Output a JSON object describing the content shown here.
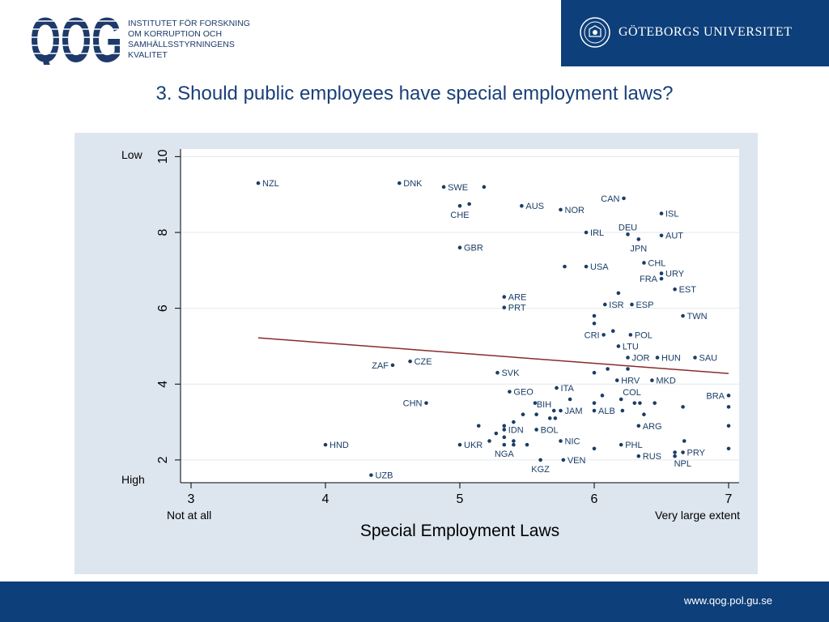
{
  "header": {
    "qog_logo_text": "QOG",
    "qog_lines": [
      "INSTITUTET FÖR FORSKNING",
      "OM KORRUPTION OCH",
      "SAMHÄLLSSTYRNINGENS",
      "KVALITET"
    ],
    "university_name": "GÖTEBORGS UNIVERSITET"
  },
  "title": "3. Should public employees have special employment laws?",
  "footer": {
    "url": "www.qog.pol.gu.se"
  },
  "colors": {
    "brand_blue": "#0d3f7a",
    "point": "#1a3d66",
    "fit_line": "#8b2a2a",
    "plot_bg": "#dde6ef"
  },
  "chart_data": {
    "type": "scatter",
    "xlabel": "Special Employment Laws",
    "ylabel": "",
    "xlim": [
      3,
      7
    ],
    "ylim": [
      1.4,
      10.2
    ],
    "xticks": [
      3,
      4,
      5,
      6,
      7
    ],
    "yticks": [
      2,
      4,
      6,
      8,
      10
    ],
    "x_end_labels": {
      "min": "Not at all",
      "max": "Very large extent"
    },
    "y_end_labels": {
      "max": "Low",
      "min": "High"
    },
    "grid": "horizontal",
    "fit_line": {
      "x": [
        3.5,
        7.0
      ],
      "y": [
        5.22,
        4.28
      ]
    },
    "points": [
      {
        "x": 3.5,
        "y": 9.3,
        "label": "NZL",
        "pos": "right"
      },
      {
        "x": 4.55,
        "y": 9.3,
        "label": "DNK",
        "pos": "right"
      },
      {
        "x": 4.88,
        "y": 9.2,
        "label": "SWE",
        "pos": "right"
      },
      {
        "x": 5.18,
        "y": 9.2,
        "label": "",
        "pos": "right"
      },
      {
        "x": 5.07,
        "y": 8.75,
        "label": "",
        "pos": "right"
      },
      {
        "x": 5.0,
        "y": 8.7,
        "label": "CHE",
        "pos": "below"
      },
      {
        "x": 5.46,
        "y": 8.7,
        "label": "AUS",
        "pos": "right"
      },
      {
        "x": 5.75,
        "y": 8.6,
        "label": "NOR",
        "pos": "right"
      },
      {
        "x": 6.22,
        "y": 8.9,
        "label": "CAN",
        "pos": "left"
      },
      {
        "x": 6.5,
        "y": 8.5,
        "label": "ISL",
        "pos": "right"
      },
      {
        "x": 5.94,
        "y": 8.0,
        "label": "IRL",
        "pos": "right"
      },
      {
        "x": 6.25,
        "y": 7.95,
        "label": "DEU",
        "pos": "above"
      },
      {
        "x": 6.33,
        "y": 7.82,
        "label": "JPN",
        "pos": "below"
      },
      {
        "x": 6.5,
        "y": 7.92,
        "label": "AUT",
        "pos": "right"
      },
      {
        "x": 5.0,
        "y": 7.6,
        "label": "GBR",
        "pos": "right"
      },
      {
        "x": 5.78,
        "y": 7.1,
        "label": "",
        "pos": "right"
      },
      {
        "x": 5.94,
        "y": 7.1,
        "label": "USA",
        "pos": "right"
      },
      {
        "x": 6.37,
        "y": 7.2,
        "label": "CHL",
        "pos": "right"
      },
      {
        "x": 6.5,
        "y": 6.92,
        "label": "URY",
        "pos": "right"
      },
      {
        "x": 6.5,
        "y": 6.78,
        "label": "FRA",
        "pos": "left"
      },
      {
        "x": 6.6,
        "y": 6.5,
        "label": "EST",
        "pos": "right"
      },
      {
        "x": 6.18,
        "y": 6.4,
        "label": "",
        "pos": "right"
      },
      {
        "x": 5.33,
        "y": 6.3,
        "label": "ARE",
        "pos": "right"
      },
      {
        "x": 5.33,
        "y": 6.02,
        "label": "PRT",
        "pos": "right"
      },
      {
        "x": 6.08,
        "y": 6.1,
        "label": "ISR",
        "pos": "right"
      },
      {
        "x": 6.28,
        "y": 6.1,
        "label": "ESP",
        "pos": "right"
      },
      {
        "x": 6.66,
        "y": 5.8,
        "label": "TWN",
        "pos": "right"
      },
      {
        "x": 6.0,
        "y": 5.8,
        "label": "",
        "pos": "right"
      },
      {
        "x": 6.0,
        "y": 5.6,
        "label": "",
        "pos": "right"
      },
      {
        "x": 6.14,
        "y": 5.4,
        "label": "",
        "pos": "right"
      },
      {
        "x": 6.07,
        "y": 5.3,
        "label": "CRI",
        "pos": "left"
      },
      {
        "x": 6.27,
        "y": 5.3,
        "label": "POL",
        "pos": "right"
      },
      {
        "x": 6.18,
        "y": 5.0,
        "label": "LTU",
        "pos": "right"
      },
      {
        "x": 6.25,
        "y": 4.7,
        "label": "JOR",
        "pos": "right"
      },
      {
        "x": 6.47,
        "y": 4.7,
        "label": "HUN",
        "pos": "right"
      },
      {
        "x": 6.75,
        "y": 4.7,
        "label": "SAU",
        "pos": "right"
      },
      {
        "x": 4.5,
        "y": 4.5,
        "label": "ZAF",
        "pos": "left"
      },
      {
        "x": 4.63,
        "y": 4.6,
        "label": "CZE",
        "pos": "right"
      },
      {
        "x": 6.1,
        "y": 4.4,
        "label": "",
        "pos": "right"
      },
      {
        "x": 6.25,
        "y": 4.4,
        "label": "",
        "pos": "right"
      },
      {
        "x": 6.0,
        "y": 4.3,
        "label": "",
        "pos": "right"
      },
      {
        "x": 5.28,
        "y": 4.3,
        "label": "SVK",
        "pos": "right"
      },
      {
        "x": 6.17,
        "y": 4.1,
        "label": "HRV",
        "pos": "right"
      },
      {
        "x": 6.43,
        "y": 4.1,
        "label": "MKD",
        "pos": "right"
      },
      {
        "x": 5.72,
        "y": 3.9,
        "label": "ITA",
        "pos": "right"
      },
      {
        "x": 5.37,
        "y": 3.8,
        "label": "GEO",
        "pos": "right"
      },
      {
        "x": 6.06,
        "y": 3.7,
        "label": "",
        "pos": "right"
      },
      {
        "x": 6.2,
        "y": 3.6,
        "label": "COL",
        "pos": "above-right"
      },
      {
        "x": 7.0,
        "y": 3.7,
        "label": "BRA",
        "pos": "left"
      },
      {
        "x": 5.82,
        "y": 3.6,
        "label": "",
        "pos": "right"
      },
      {
        "x": 4.75,
        "y": 3.5,
        "label": "CHN",
        "pos": "left"
      },
      {
        "x": 5.56,
        "y": 3.5,
        "label": "",
        "pos": "right"
      },
      {
        "x": 6.0,
        "y": 3.5,
        "label": "",
        "pos": "right"
      },
      {
        "x": 6.3,
        "y": 3.5,
        "label": "",
        "pos": "right"
      },
      {
        "x": 6.34,
        "y": 3.5,
        "label": "",
        "pos": "right"
      },
      {
        "x": 6.45,
        "y": 3.5,
        "label": "",
        "pos": "right"
      },
      {
        "x": 6.66,
        "y": 3.4,
        "label": "",
        "pos": "right"
      },
      {
        "x": 7.0,
        "y": 3.4,
        "label": "",
        "pos": "right"
      },
      {
        "x": 5.75,
        "y": 3.3,
        "label": "JAM",
        "pos": "right"
      },
      {
        "x": 5.7,
        "y": 3.3,
        "label": "BIH",
        "pos": "above-left"
      },
      {
        "x": 6.0,
        "y": 3.3,
        "label": "ALB",
        "pos": "right"
      },
      {
        "x": 6.21,
        "y": 3.3,
        "label": "",
        "pos": "right"
      },
      {
        "x": 6.37,
        "y": 3.2,
        "label": "",
        "pos": "right"
      },
      {
        "x": 5.47,
        "y": 3.2,
        "label": "",
        "pos": "right"
      },
      {
        "x": 5.57,
        "y": 3.2,
        "label": "",
        "pos": "right"
      },
      {
        "x": 5.67,
        "y": 3.1,
        "label": "",
        "pos": "right"
      },
      {
        "x": 5.71,
        "y": 3.1,
        "label": "",
        "pos": "right"
      },
      {
        "x": 5.4,
        "y": 3.0,
        "label": "",
        "pos": "right"
      },
      {
        "x": 5.14,
        "y": 2.9,
        "label": "",
        "pos": "right"
      },
      {
        "x": 5.33,
        "y": 2.9,
        "label": "",
        "pos": "right"
      },
      {
        "x": 6.33,
        "y": 2.9,
        "label": "ARG",
        "pos": "right"
      },
      {
        "x": 7.0,
        "y": 2.9,
        "label": "",
        "pos": "right"
      },
      {
        "x": 5.33,
        "y": 2.8,
        "label": "IDN",
        "pos": "right"
      },
      {
        "x": 5.57,
        "y": 2.8,
        "label": "BOL",
        "pos": "right"
      },
      {
        "x": 5.27,
        "y": 2.7,
        "label": "",
        "pos": "right"
      },
      {
        "x": 5.33,
        "y": 2.6,
        "label": "",
        "pos": "right"
      },
      {
        "x": 5.75,
        "y": 2.5,
        "label": "NIC",
        "pos": "right"
      },
      {
        "x": 6.67,
        "y": 2.5,
        "label": "",
        "pos": "right"
      },
      {
        "x": 5.22,
        "y": 2.5,
        "label": "",
        "pos": "right"
      },
      {
        "x": 5.4,
        "y": 2.5,
        "label": "",
        "pos": "right"
      },
      {
        "x": 4.0,
        "y": 2.4,
        "label": "HND",
        "pos": "right"
      },
      {
        "x": 5.0,
        "y": 2.4,
        "label": "UKR",
        "pos": "right"
      },
      {
        "x": 5.33,
        "y": 2.4,
        "label": "NGA",
        "pos": "below"
      },
      {
        "x": 5.4,
        "y": 2.4,
        "label": "",
        "pos": "right"
      },
      {
        "x": 5.5,
        "y": 2.4,
        "label": "",
        "pos": "right"
      },
      {
        "x": 6.2,
        "y": 2.4,
        "label": "PHL",
        "pos": "right"
      },
      {
        "x": 6.0,
        "y": 2.3,
        "label": "",
        "pos": "right"
      },
      {
        "x": 7.0,
        "y": 2.3,
        "label": "",
        "pos": "right"
      },
      {
        "x": 6.6,
        "y": 2.2,
        "label": "",
        "pos": "right"
      },
      {
        "x": 6.66,
        "y": 2.2,
        "label": "PRY",
        "pos": "right"
      },
      {
        "x": 6.33,
        "y": 2.1,
        "label": "RUS",
        "pos": "right"
      },
      {
        "x": 6.6,
        "y": 2.1,
        "label": "NPL",
        "pos": "below-right"
      },
      {
        "x": 5.6,
        "y": 2.0,
        "label": "KGZ",
        "pos": "below"
      },
      {
        "x": 5.77,
        "y": 2.0,
        "label": "VEN",
        "pos": "right"
      },
      {
        "x": 4.34,
        "y": 1.6,
        "label": "UZB",
        "pos": "right"
      }
    ]
  }
}
